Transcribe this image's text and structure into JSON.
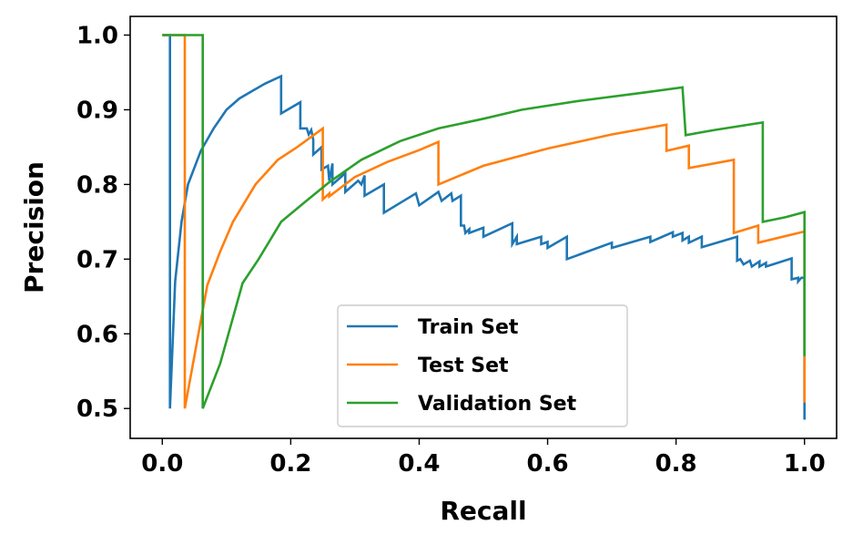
{
  "chart_data": {
    "type": "line",
    "title": "",
    "xlabel": "Recall",
    "ylabel": "Precision",
    "xlim": [
      -0.05,
      1.05
    ],
    "ylim": [
      0.46,
      1.025
    ],
    "xticks": [
      0.0,
      0.2,
      0.4,
      0.6,
      0.8,
      1.0
    ],
    "yticks": [
      0.5,
      0.6,
      0.7,
      0.8,
      0.9,
      1.0
    ],
    "xtick_labels": [
      "0.0",
      "0.2",
      "0.4",
      "0.6",
      "0.8",
      "1.0"
    ],
    "ytick_labels": [
      "0.5",
      "0.6",
      "0.7",
      "0.8",
      "0.9",
      "1.0"
    ],
    "grid": false,
    "legend": "bottom-center",
    "series": [
      {
        "name": "Train Set",
        "color": "#1f77b4",
        "points": [
          [
            0.0,
            1.0
          ],
          [
            0.012,
            1.0
          ],
          [
            0.012,
            0.5
          ],
          [
            0.02,
            0.67
          ],
          [
            0.03,
            0.75
          ],
          [
            0.04,
            0.8
          ],
          [
            0.06,
            0.845
          ],
          [
            0.08,
            0.875
          ],
          [
            0.1,
            0.9
          ],
          [
            0.12,
            0.915
          ],
          [
            0.14,
            0.925
          ],
          [
            0.16,
            0.935
          ],
          [
            0.185,
            0.945
          ],
          [
            0.185,
            0.895
          ],
          [
            0.215,
            0.91
          ],
          [
            0.215,
            0.875
          ],
          [
            0.225,
            0.875
          ],
          [
            0.228,
            0.867
          ],
          [
            0.232,
            0.873
          ],
          [
            0.235,
            0.86
          ],
          [
            0.235,
            0.84
          ],
          [
            0.248,
            0.85
          ],
          [
            0.248,
            0.82
          ],
          [
            0.258,
            0.825
          ],
          [
            0.26,
            0.805
          ],
          [
            0.265,
            0.828
          ],
          [
            0.265,
            0.8
          ],
          [
            0.285,
            0.815
          ],
          [
            0.285,
            0.79
          ],
          [
            0.305,
            0.805
          ],
          [
            0.31,
            0.8
          ],
          [
            0.315,
            0.812
          ],
          [
            0.315,
            0.785
          ],
          [
            0.345,
            0.8
          ],
          [
            0.345,
            0.762
          ],
          [
            0.395,
            0.788
          ],
          [
            0.4,
            0.772
          ],
          [
            0.43,
            0.79
          ],
          [
            0.435,
            0.778
          ],
          [
            0.45,
            0.788
          ],
          [
            0.452,
            0.778
          ],
          [
            0.465,
            0.785
          ],
          [
            0.465,
            0.745
          ],
          [
            0.47,
            0.745
          ],
          [
            0.472,
            0.735
          ],
          [
            0.478,
            0.74
          ],
          [
            0.478,
            0.735
          ],
          [
            0.5,
            0.742
          ],
          [
            0.5,
            0.73
          ],
          [
            0.545,
            0.748
          ],
          [
            0.545,
            0.72
          ],
          [
            0.552,
            0.73
          ],
          [
            0.552,
            0.72
          ],
          [
            0.59,
            0.73
          ],
          [
            0.59,
            0.72
          ],
          [
            0.6,
            0.723
          ],
          [
            0.6,
            0.715
          ],
          [
            0.63,
            0.73
          ],
          [
            0.63,
            0.7
          ],
          [
            0.7,
            0.722
          ],
          [
            0.7,
            0.715
          ],
          [
            0.76,
            0.73
          ],
          [
            0.76,
            0.723
          ],
          [
            0.795,
            0.736
          ],
          [
            0.795,
            0.73
          ],
          [
            0.81,
            0.735
          ],
          [
            0.81,
            0.725
          ],
          [
            0.82,
            0.73
          ],
          [
            0.82,
            0.722
          ],
          [
            0.84,
            0.73
          ],
          [
            0.84,
            0.716
          ],
          [
            0.895,
            0.73
          ],
          [
            0.895,
            0.698
          ],
          [
            0.9,
            0.7
          ],
          [
            0.905,
            0.693
          ],
          [
            0.915,
            0.698
          ],
          [
            0.918,
            0.69
          ],
          [
            0.93,
            0.697
          ],
          [
            0.93,
            0.69
          ],
          [
            0.94,
            0.695
          ],
          [
            0.94,
            0.69
          ],
          [
            0.98,
            0.701
          ],
          [
            0.98,
            0.673
          ],
          [
            0.99,
            0.675
          ],
          [
            0.99,
            0.67
          ],
          [
            0.995,
            0.675
          ],
          [
            1.0,
            0.675
          ],
          [
            1.0,
            0.485
          ]
        ]
      },
      {
        "name": "Test Set",
        "color": "#ff7f0e",
        "points": [
          [
            0.0,
            1.0
          ],
          [
            0.035,
            1.0
          ],
          [
            0.035,
            0.5
          ],
          [
            0.05,
            0.57
          ],
          [
            0.07,
            0.665
          ],
          [
            0.09,
            0.71
          ],
          [
            0.11,
            0.75
          ],
          [
            0.145,
            0.8
          ],
          [
            0.18,
            0.833
          ],
          [
            0.21,
            0.85
          ],
          [
            0.25,
            0.875
          ],
          [
            0.25,
            0.78
          ],
          [
            0.26,
            0.788
          ],
          [
            0.26,
            0.784
          ],
          [
            0.3,
            0.81
          ],
          [
            0.35,
            0.83
          ],
          [
            0.4,
            0.846
          ],
          [
            0.43,
            0.857
          ],
          [
            0.43,
            0.8
          ],
          [
            0.5,
            0.825
          ],
          [
            0.6,
            0.848
          ],
          [
            0.7,
            0.867
          ],
          [
            0.785,
            0.88
          ],
          [
            0.785,
            0.845
          ],
          [
            0.82,
            0.852
          ],
          [
            0.82,
            0.822
          ],
          [
            0.89,
            0.833
          ],
          [
            0.89,
            0.735
          ],
          [
            0.928,
            0.745
          ],
          [
            0.928,
            0.722
          ],
          [
            1.0,
            0.737
          ],
          [
            1.0,
            0.508
          ],
          [
            1.0,
            0.59
          ]
        ]
      },
      {
        "name": "Validation Set",
        "color": "#2ca02c",
        "points": [
          [
            0.0,
            1.0
          ],
          [
            0.063,
            1.0
          ],
          [
            0.063,
            0.5
          ],
          [
            0.09,
            0.56
          ],
          [
            0.125,
            0.668
          ],
          [
            0.15,
            0.7
          ],
          [
            0.185,
            0.75
          ],
          [
            0.22,
            0.775
          ],
          [
            0.26,
            0.803
          ],
          [
            0.31,
            0.833
          ],
          [
            0.37,
            0.858
          ],
          [
            0.43,
            0.875
          ],
          [
            0.5,
            0.888
          ],
          [
            0.56,
            0.9
          ],
          [
            0.65,
            0.912
          ],
          [
            0.75,
            0.923
          ],
          [
            0.81,
            0.93
          ],
          [
            0.815,
            0.866
          ],
          [
            0.86,
            0.873
          ],
          [
            0.935,
            0.883
          ],
          [
            0.935,
            0.75
          ],
          [
            0.97,
            0.756
          ],
          [
            1.0,
            0.763
          ],
          [
            1.0,
            0.57
          ]
        ]
      }
    ]
  }
}
